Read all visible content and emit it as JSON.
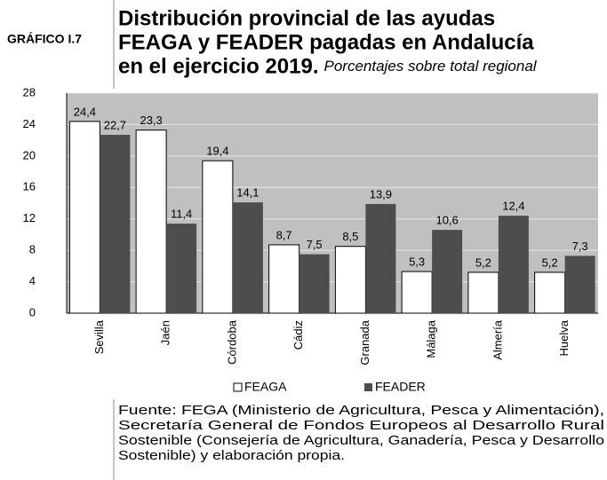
{
  "label": "GRÁFICO I.7",
  "chart_data": {
    "type": "bar",
    "title": [
      "Distribución provincial de las ayudas",
      "FEAGA y FEADER pagadas en Andalucía",
      "en el ejercicio 2019."
    ],
    "subtitle": "Porcentajes sobre total regional",
    "categories": [
      "Sevilla",
      "Jaén",
      "Córdoba",
      "Cádiz",
      "Granada",
      "Málaga",
      "Almería",
      "Huelva"
    ],
    "series": [
      {
        "name": "FEAGA",
        "color": "#ffffff",
        "values": [
          24.4,
          23.3,
          19.4,
          8.7,
          8.5,
          5.3,
          5.2,
          5.2
        ],
        "value_labels": [
          "24,4",
          "23,3",
          "19,4",
          "8,7",
          "8,5",
          "5,3",
          "5,2",
          "5,2"
        ]
      },
      {
        "name": "FEADER",
        "color": "#4d4d4d",
        "values": [
          22.7,
          11.4,
          14.1,
          7.5,
          13.9,
          10.6,
          12.4,
          7.3
        ],
        "value_labels": [
          "22,7",
          "11,4",
          "14,1",
          "7,5",
          "13,9",
          "10,6",
          "12,4",
          "7,3"
        ]
      }
    ],
    "ylim": [
      0,
      28
    ],
    "yticks": [
      0,
      4,
      8,
      12,
      16,
      20,
      24,
      28
    ],
    "grid": true,
    "legend": "bottom"
  },
  "source": [
    "Fuente: FEGA (Ministerio de Agricultura, Pesca y Alimentación),",
    "Secretaría General de Fondos Europeos al Desarrollo Rural",
    "Sostenible (Consejería de Agricultura, Ganadería, Pesca y Desarrollo",
    "Sostenible) y elaboración propia."
  ]
}
